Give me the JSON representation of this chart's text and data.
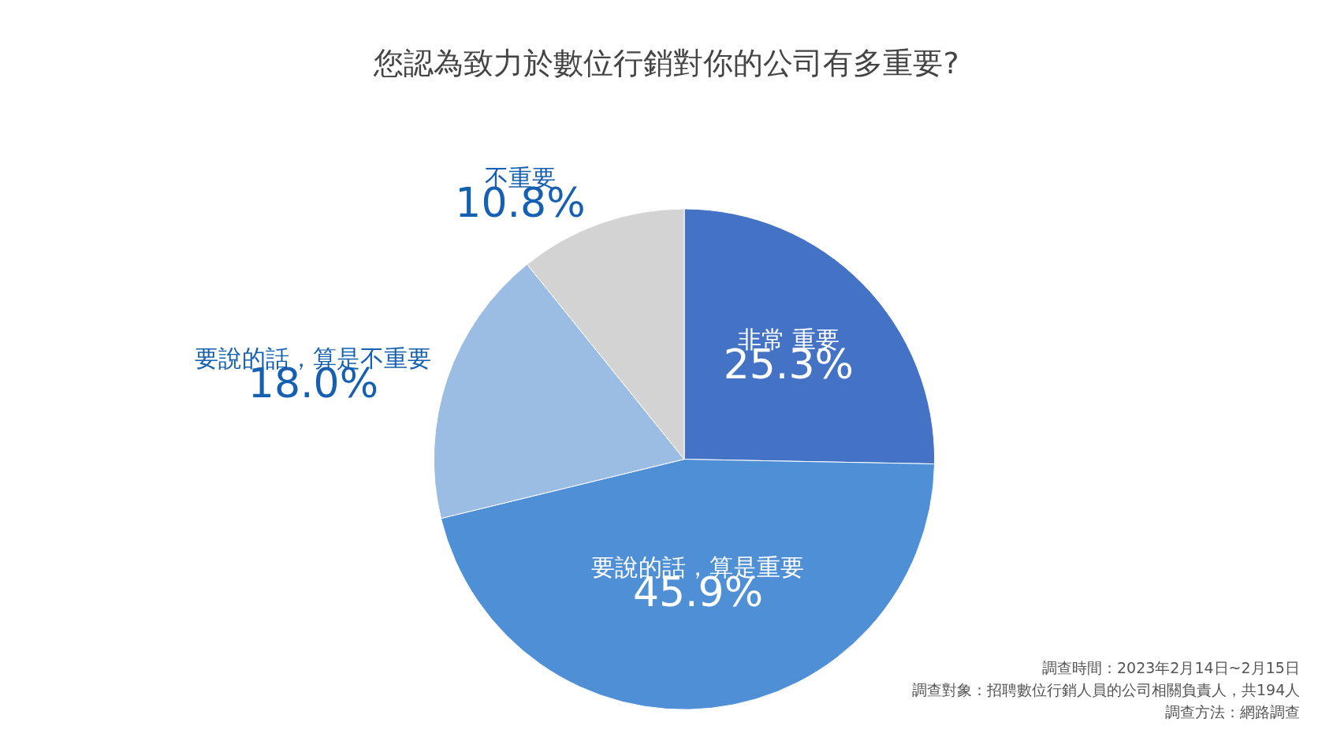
{
  "chart_data": {
    "type": "pie",
    "title": "您認為致力於數位行銷對你的公司有多重要?",
    "categories": [
      "非常 重要",
      "要說的話，算是重要",
      "要說的話，算是不重要",
      "不重要"
    ],
    "values": [
      25.3,
      45.9,
      18.0,
      10.8
    ],
    "value_labels": [
      "25.3%",
      "45.9%",
      "18.0%",
      "10.8%"
    ],
    "colors": [
      "#4472c4",
      "#4f8fd6",
      "#9bbde3",
      "#d3d3d3"
    ],
    "annotations": [
      "調查時間：2023年2月14日~2月15日",
      "調查對象：招聘數位行銷人員的公司相關負責人，共194人",
      "調查方法：網路調查"
    ]
  }
}
